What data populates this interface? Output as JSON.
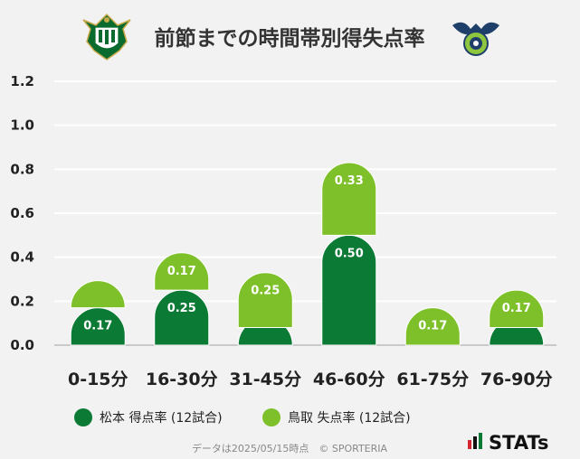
{
  "chart_data": {
    "type": "bar",
    "stacked": true,
    "title": "前節までの時間帯別得失点率",
    "categories": [
      "0-15分",
      "16-30分",
      "31-45分",
      "46-60分",
      "61-75分",
      "76-90分"
    ],
    "series": [
      {
        "name": "松本 得点率 (12試合)",
        "color": "#0a7a34",
        "values": [
          0.17,
          0.25,
          0.08,
          0.5,
          0.0,
          0.08
        ],
        "labels": [
          "0.17",
          "0.25",
          "",
          "0.50",
          "",
          ""
        ]
      },
      {
        "name": "鳥取 失点率 (12試合)",
        "color": "#7dc02a",
        "values": [
          0.08,
          0.17,
          0.25,
          0.33,
          0.17,
          0.17
        ],
        "labels": [
          "",
          "0.17",
          "0.25",
          "0.33",
          "0.17",
          "0.17"
        ]
      }
    ],
    "yticks": [
      "0.0",
      "0.2",
      "0.4",
      "0.6",
      "0.8",
      "1.0",
      "1.2"
    ],
    "ylim": [
      0,
      1.2
    ],
    "grid": true,
    "legend_position": "bottom-left"
  },
  "footer": {
    "note": "データは2025/05/15時点　© SPORTERIA",
    "brand": "STATs"
  },
  "colors": {
    "background": "#f2f2f2",
    "grid": "#ffffff",
    "axis": "#bbbbbb"
  },
  "icons": {
    "left_emblem": "matsumoto-emblem-icon",
    "right_emblem": "tottori-emblem-icon",
    "brand_mark": "stats-bars-icon"
  }
}
